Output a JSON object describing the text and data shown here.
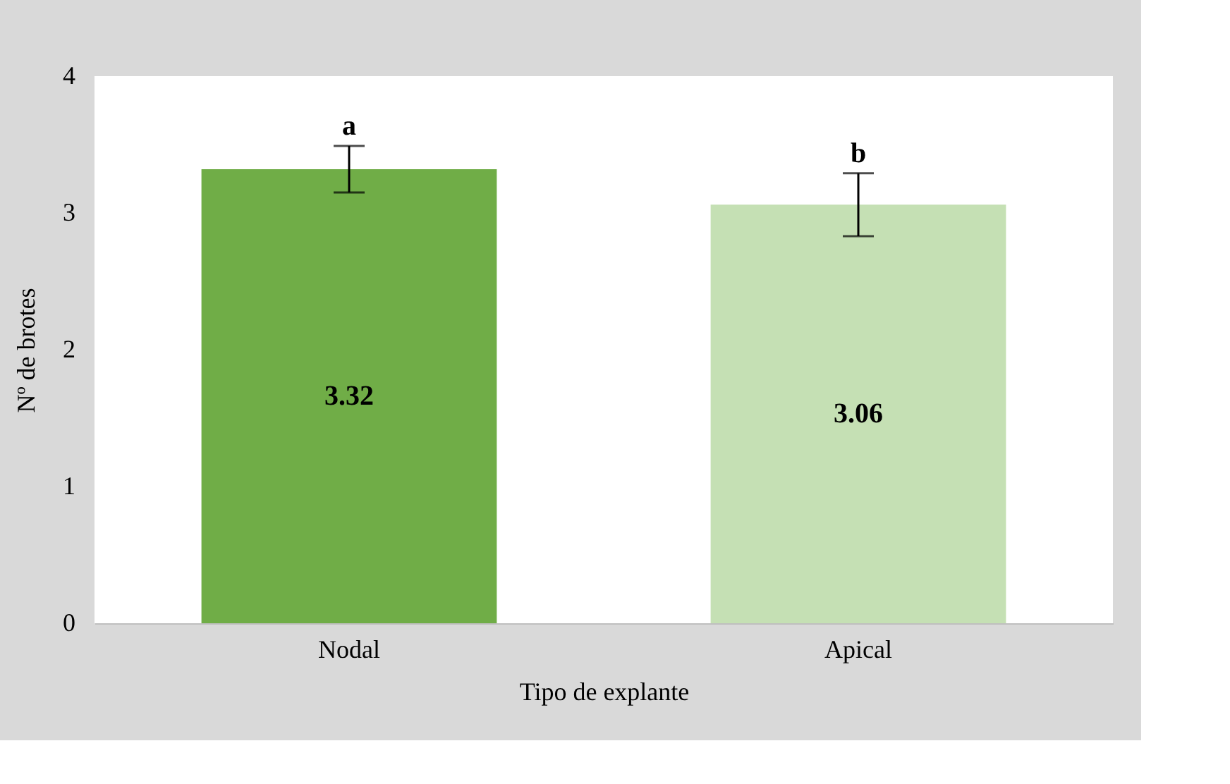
{
  "chart_data": {
    "type": "bar",
    "xlabel": "Tipo de explante",
    "ylabel": "Nº de brotes",
    "categories": [
      "Nodal",
      "Apical"
    ],
    "values": [
      3.32,
      3.06
    ],
    "colors": [
      "#70ad47",
      "#c5e0b4"
    ],
    "errors": [
      0.17,
      0.23
    ],
    "data_labels": true,
    "annotations": [
      {
        "text": "a",
        "x": "Nodal",
        "y": 3.49
      },
      {
        "text": "b",
        "x": "Apical",
        "y": 3.29
      }
    ],
    "ylim": [
      0,
      4
    ],
    "yticks": [
      0,
      1,
      2,
      3,
      4
    ],
    "grid": false
  }
}
